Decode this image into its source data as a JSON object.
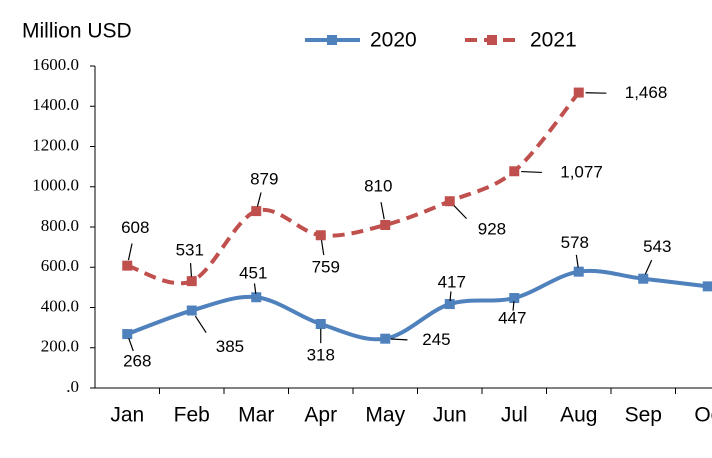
{
  "chart_data": {
    "type": "line",
    "y_label": "Million USD",
    "categories": [
      "Jan",
      "Feb",
      "Mar",
      "Apr",
      "May",
      "Jun",
      "Jul",
      "Aug",
      "Sep",
      "Oc"
    ],
    "series": [
      {
        "name": "2020",
        "color": "#4f81bd",
        "dashed": false,
        "values": [
          268,
          385,
          451,
          318,
          245,
          417,
          447,
          578,
          543,
          505
        ],
        "value_labels": [
          "268",
          "385",
          "451",
          "318",
          "245",
          "417",
          "447",
          "578",
          "543",
          null
        ]
      },
      {
        "name": "2021",
        "color": "#c0504d",
        "dashed": true,
        "values": [
          608,
          531,
          879,
          759,
          810,
          928,
          1077,
          1468,
          null,
          null
        ],
        "value_labels": [
          "608",
          "531",
          "879",
          "759",
          "810",
          "928",
          "1,077",
          "1,468",
          null,
          null
        ]
      }
    ],
    "ylim": [
      0,
      1600
    ],
    "yticks": [
      {
        "value": 0,
        "label": ".0"
      },
      {
        "value": 200,
        "label": "200.0"
      },
      {
        "value": 400,
        "label": "400.0"
      },
      {
        "value": 600,
        "label": "600.0"
      },
      {
        "value": 800,
        "label": "800.0"
      },
      {
        "value": 1000,
        "label": "1000.0"
      },
      {
        "value": 1200,
        "label": "1200.0"
      },
      {
        "value": 1400,
        "label": "1400.0"
      },
      {
        "value": 1600,
        "label": "1600.0"
      }
    ],
    "grid": false,
    "legend": "top"
  }
}
